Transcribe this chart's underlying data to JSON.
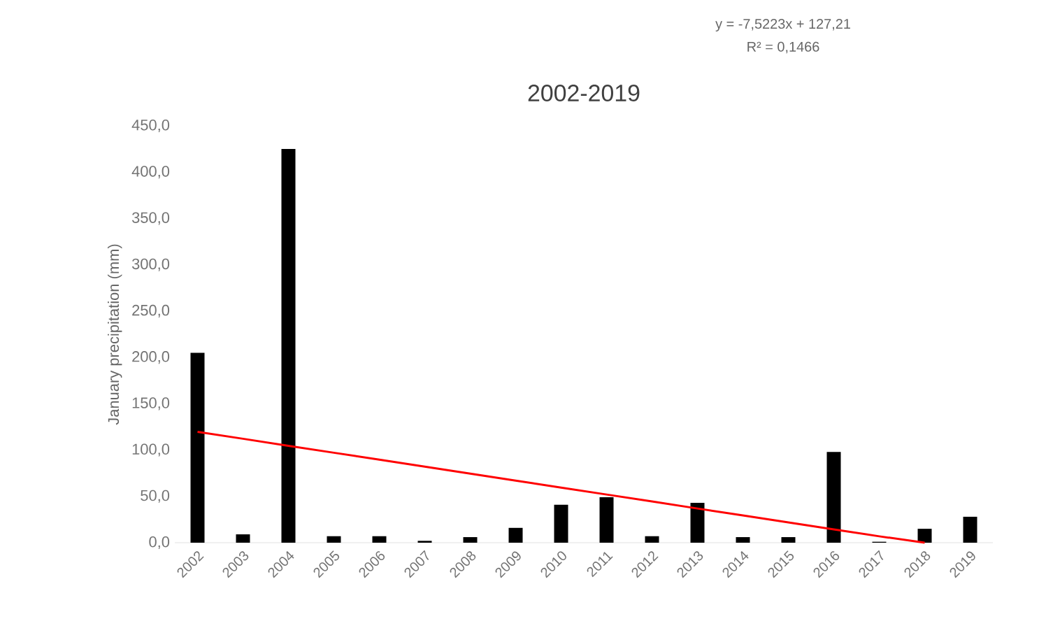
{
  "chart_data": {
    "type": "bar",
    "title": "2002-2019",
    "ylabel": "January precipitation (mm)",
    "categories": [
      "2002",
      "2003",
      "2004",
      "2005",
      "2006",
      "2007",
      "2008",
      "2009",
      "2010",
      "2011",
      "2012",
      "2013",
      "2014",
      "2015",
      "2016",
      "2017",
      "2018",
      "2019"
    ],
    "series": [
      {
        "color": "#000000",
        "values": [
          205,
          9,
          425,
          7,
          7,
          2,
          6,
          16,
          41,
          49,
          7,
          43,
          6,
          6,
          98,
          1,
          15,
          28
        ]
      },
      {
        "type": "line",
        "color": "#ff0000",
        "values": [
          119.7,
          112.2,
          104.6,
          97.1,
          89.6,
          82.1,
          74.6,
          67.0,
          59.5,
          52.0,
          44.5,
          36.9,
          29.4,
          21.9,
          14.4,
          6.9,
          0,
          null
        ]
      }
    ],
    "ylim": [
      0,
      450
    ],
    "yticks": [
      {
        "value": 0,
        "label": "0,0"
      },
      {
        "value": 50,
        "label": "50,0"
      },
      {
        "value": 100,
        "label": "100,0"
      },
      {
        "value": 150,
        "label": "150,0"
      },
      {
        "value": 200,
        "label": "200,0"
      },
      {
        "value": 250,
        "label": "250,0"
      },
      {
        "value": 300,
        "label": "300,0"
      },
      {
        "value": 350,
        "label": "350,0"
      },
      {
        "value": 400,
        "label": "400,0"
      },
      {
        "value": 450,
        "label": "450,0"
      }
    ],
    "grid": false,
    "annotations": [
      "y = -7,5223x + 127,21",
      "R² = 0,1466"
    ]
  }
}
